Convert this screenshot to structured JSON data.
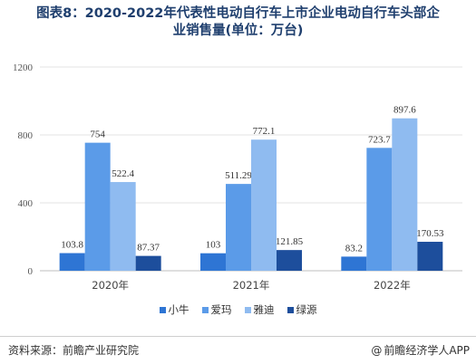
{
  "title_line1": "图表8：2020-2022年代表性电动自行车上市企业电动自行车头部企",
  "title_line2": "业销售量(单位：万台)",
  "footer": {
    "source": "资料来源：前瞻产业研究院",
    "brand_icon": "@",
    "brand": "前瞻经济学人APP"
  },
  "colors": {
    "小牛": "#2e75d4",
    "爱玛": "#5b9be8",
    "雅迪": "#8fbbf0",
    "绿源": "#1d4e9c"
  },
  "chart_data": {
    "type": "bar",
    "categories": [
      "2020年",
      "2021年",
      "2022年"
    ],
    "series": [
      {
        "name": "小牛",
        "values": [
          103.8,
          103,
          83.2
        ],
        "labels": [
          "103.8",
          "103",
          "83.2"
        ]
      },
      {
        "name": "爱玛",
        "values": [
          754,
          511.29,
          723.7
        ],
        "labels": [
          "754",
          "511.29",
          "723.7"
        ]
      },
      {
        "name": "雅迪",
        "values": [
          522.4,
          772.1,
          897.6
        ],
        "labels": [
          "522.4",
          "772.1",
          "897.6"
        ]
      },
      {
        "name": "绿源",
        "values": [
          87.37,
          121.85,
          170.53
        ],
        "labels": [
          "87.37",
          "121.85",
          "170.53"
        ]
      }
    ],
    "yticks": [
      0,
      400,
      800,
      1200
    ],
    "ylim": [
      0,
      1200
    ],
    "legend": "bottom",
    "grid": true
  }
}
